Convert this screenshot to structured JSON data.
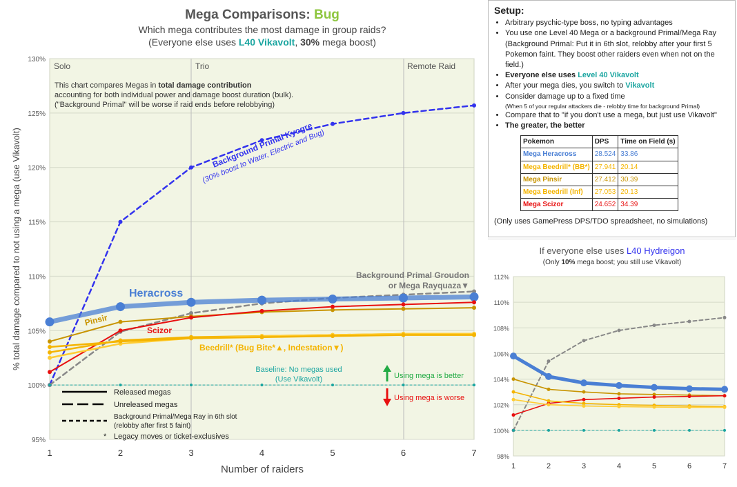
{
  "colors": {
    "heracross": "#4a7fd4",
    "beedrill_bb": "#f4b400",
    "pinsir": "#c89400",
    "beedrill_inf": "#ffcc33",
    "scizor": "#e81010",
    "kyogre": "#3333ee",
    "groudon": "#888888",
    "baseline": "#1aa5a0",
    "plot_bg": "#f2f5e4",
    "bug_green": "#8ec63f",
    "arrow_up": "#22aa44",
    "arrow_down": "#e81010"
  },
  "main": {
    "title_prefix": "Mega Comparisons: ",
    "title_highlight": "Bug",
    "subtitle": "Which mega contributes the most damage in group raids?",
    "subtitle2_a": "(Everyone else uses ",
    "subtitle2_b": "L40 Vikavolt",
    "subtitle2_c": ", ",
    "subtitle2_d": "30%",
    "subtitle2_e": " mega boost)",
    "ylabel": "% total damage compared to not using a mega (use Vikavolt)",
    "xlabel": "Number of raiders",
    "zone_solo": "Solo",
    "zone_trio": "Trio",
    "zone_remote": "Remote Raid",
    "note1a": "This chart compares Megas in ",
    "note1b": "total damage contribution",
    ",note1c": ",",
    "note2": "accounting for both individual power and damage boost duration (bulk).",
    "note3": "(\"Background Primal\" will be worse if raid ends before relobbying)",
    "label_heracross": "Heracross",
    "label_pinsir": "Pinsir",
    "label_scizor": "Scizor",
    "label_beedrill": "Beedrill* (Bug Bite*▲, Indestation▼)",
    "label_kyogre": "Background Primal Kyogre",
    "label_kyogre2": "(30% boost to Water, Electric and Bug)",
    "label_groudon1": "Background Primal Groudon",
    "label_groudon2": "or Mega Rayquaza▼",
    "label_baseline1": "Baseline: No megas used",
    "label_baseline2": "(Use Vikavolt)",
    "label_better": "Using mega is better",
    "label_worse": "Using mega is worse",
    "legend_released": "Released megas",
    "legend_unreleased": "Unreleased megas",
    "legend_bg1": "Background Primal/Mega Ray in 6th slot",
    "legend_bg2": "(relobby after first 5 faint)",
    "legend_star_sym": "*",
    "legend_star": "Legacy moves or ticket-exclusives"
  },
  "setup": {
    "title": "Setup:",
    "b1": "Arbitrary psychic-type boss, no typing advantages",
    "b2": "You use one Level 40 Mega or a background Primal/Mega Ray",
    "b2b": "(Background Primal: Put it in 6th slot, relobby after your first 5 Pokemon faint. They boost other raiders even when not on the field.)",
    "b3a": "Everyone else uses ",
    "b3b": "Level 40 Vikavolt",
    "b4a": "After your mega dies, you switch to ",
    "b4b": "Vikavolt",
    "b5": "Consider damage up to a fixed time",
    "b5b": "(When 5 of your regular attackers die - relobby time for background Primal)",
    "b6": "Compare that to \"if you don't use a mega, but just use Vikavolt\"",
    "b7": "The greater, the better",
    "table_headers": [
      "Pokemon",
      "DPS",
      "Time on Field (s)"
    ],
    "footnote": "(Only uses GamePress DPS/TDO spreadsheet, no simulations)"
  },
  "table_rows": [
    {
      "name": "Mega Heracross",
      "dps": "28.524",
      "tof": "33.86",
      "color": "#4a7fd4"
    },
    {
      "name": "Mega Beedrill* (BB*)",
      "dps": "27.941",
      "tof": "20.14",
      "color": "#f4b400"
    },
    {
      "name": "Mega Pinsir",
      "dps": "27.412",
      "tof": "30.39",
      "color": "#c89400"
    },
    {
      "name": "Mega Beedrill (Inf)",
      "dps": "27.053",
      "tof": "20.13",
      "color": "#f4b400"
    },
    {
      "name": "Mega Scizor",
      "dps": "24.652",
      "tof": "34.39",
      "color": "#e81010"
    }
  ],
  "side": {
    "title_a": "If everyone else uses ",
    "title_b": "L40 Hydreigon",
    ",title_c": ":",
    "sub_a": "(Only ",
    "sub_b": "10%",
    "sub_c": " mega boost; you still use Vikavolt)"
  },
  "chart_data": [
    {
      "type": "line",
      "title": "Mega Comparisons: Bug",
      "xlabel": "Number of raiders",
      "ylabel": "% total damage compared to not using a mega (use Vikavolt)",
      "x": [
        1,
        2,
        3,
        4,
        5,
        6,
        7
      ],
      "ylim": [
        95,
        130
      ],
      "yticks": [
        95,
        100,
        105,
        110,
        115,
        120,
        125,
        130
      ],
      "ytick_labels": [
        "95%",
        "100%",
        "105%",
        "110%",
        "115%",
        "120%",
        "125%",
        "130%"
      ],
      "series": [
        {
          "key": "kyogre",
          "name": "Background Primal Kyogre",
          "style": "dashed",
          "values": [
            100,
            115,
            120,
            122.5,
            124,
            125,
            125.7
          ]
        },
        {
          "key": "groudon",
          "name": "Background Primal Groudon or Mega Rayquaza",
          "style": "dashed",
          "values": [
            100,
            104.9,
            106.6,
            107.5,
            108,
            108.3,
            108.6
          ]
        },
        {
          "key": "heracross",
          "name": "Heracross",
          "style": "solid",
          "values": [
            105.8,
            107.2,
            107.6,
            107.8,
            107.9,
            108,
            108.1
          ]
        },
        {
          "key": "pinsir",
          "name": "Pinsir",
          "style": "solid",
          "values": [
            104,
            105.8,
            106.3,
            106.7,
            106.9,
            107,
            107.1
          ]
        },
        {
          "key": "scizor",
          "name": "Scizor",
          "style": "solid",
          "values": [
            101.2,
            105,
            106.2,
            106.8,
            107.2,
            107.4,
            107.6
          ]
        },
        {
          "key": "beedrill_bb",
          "style": "solid",
          "values": [
            103,
            104.1,
            104.4,
            104.5,
            104.6,
            104.7,
            104.7
          ]
        },
        {
          "key": "beedrill_inf",
          "style": "solid",
          "values": [
            102.5,
            103.8,
            104.3,
            104.5,
            104.6,
            104.7,
            104.7
          ]
        },
        {
          "key": "beedrill_bb",
          "style": "solid",
          "values": [
            103.5,
            104,
            104.3,
            104.4,
            104.5,
            104.6,
            104.6
          ]
        },
        {
          "key": "baseline",
          "name": "Baseline: No megas used",
          "style": "dotted",
          "values": [
            100,
            100,
            100,
            100,
            100,
            100,
            100
          ]
        }
      ]
    },
    {
      "type": "line",
      "title": "If everyone else uses L40 Hydreigon:",
      "x": [
        1,
        2,
        3,
        4,
        5,
        6,
        7
      ],
      "ylim": [
        98,
        112
      ],
      "yticks": [
        98,
        100,
        102,
        104,
        106,
        108,
        110,
        112
      ],
      "ytick_labels": [
        "98%",
        "100%",
        "102%",
        "104%",
        "106%",
        "108%",
        "110%",
        "112%"
      ],
      "series": [
        {
          "key": "groudon",
          "style": "dashed",
          "values": [
            100,
            105.4,
            107,
            107.8,
            108.2,
            108.5,
            108.8
          ]
        },
        {
          "key": "heracross",
          "style": "solid",
          "values": [
            105.8,
            104.2,
            103.7,
            103.5,
            103.35,
            103.25,
            103.2
          ]
        },
        {
          "key": "pinsir",
          "style": "solid",
          "values": [
            104,
            103.2,
            103,
            102.85,
            102.8,
            102.75,
            102.7
          ]
        },
        {
          "key": "scizor",
          "style": "solid",
          "values": [
            101.2,
            102.1,
            102.4,
            102.5,
            102.6,
            102.65,
            102.7
          ]
        },
        {
          "key": "beedrill_bb",
          "style": "solid",
          "values": [
            103,
            102.3,
            102.1,
            102,
            101.95,
            101.9,
            101.85
          ]
        },
        {
          "key": "beedrill_inf",
          "style": "solid",
          "values": [
            102.4,
            102,
            101.9,
            101.85,
            101.82,
            101.8,
            101.8
          ]
        },
        {
          "key": "baseline",
          "style": "dotted",
          "values": [
            100,
            100,
            100,
            100,
            100,
            100,
            100
          ]
        }
      ]
    }
  ]
}
